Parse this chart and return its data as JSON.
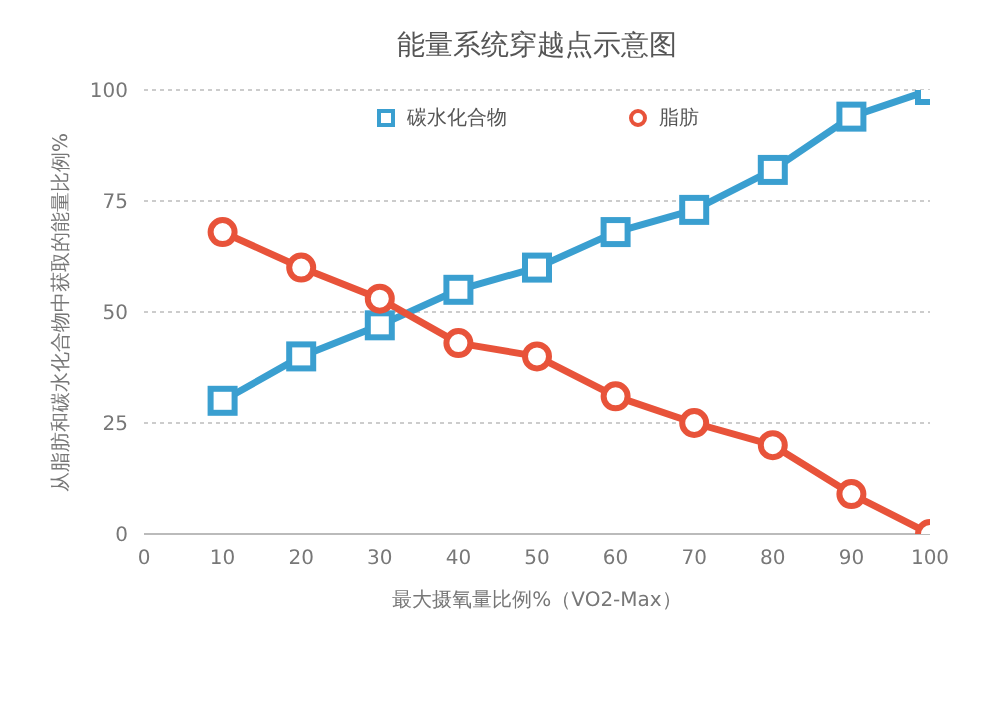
{
  "chart_data": {
    "type": "line",
    "title": "能量系统穿越点示意图",
    "xlabel": "最大摄氧量比例%（VO2-Max）",
    "ylabel": "从脂肪和碳水化合物中获取的能量比例%",
    "x": [
      10,
      20,
      30,
      40,
      50,
      60,
      70,
      80,
      90,
      100
    ],
    "series": [
      {
        "name": "碳水化合物",
        "color": "#3a9fd0",
        "marker": "square",
        "values": [
          30,
          40,
          47,
          55,
          60,
          68,
          73,
          82,
          94,
          100
        ]
      },
      {
        "name": "脂肪",
        "color": "#e8533a",
        "marker": "circle",
        "values": [
          68,
          60,
          53,
          43,
          40,
          31,
          25,
          20,
          9,
          0
        ]
      }
    ],
    "xlim": [
      0,
      100
    ],
    "xticks": [
      0,
      10,
      20,
      30,
      40,
      50,
      60,
      70,
      80,
      90,
      100
    ],
    "ylim": [
      0,
      100
    ],
    "yticks": [
      0,
      25,
      50,
      75,
      100
    ],
    "grid": "y",
    "legend": "top",
    "line_style": "solid"
  }
}
